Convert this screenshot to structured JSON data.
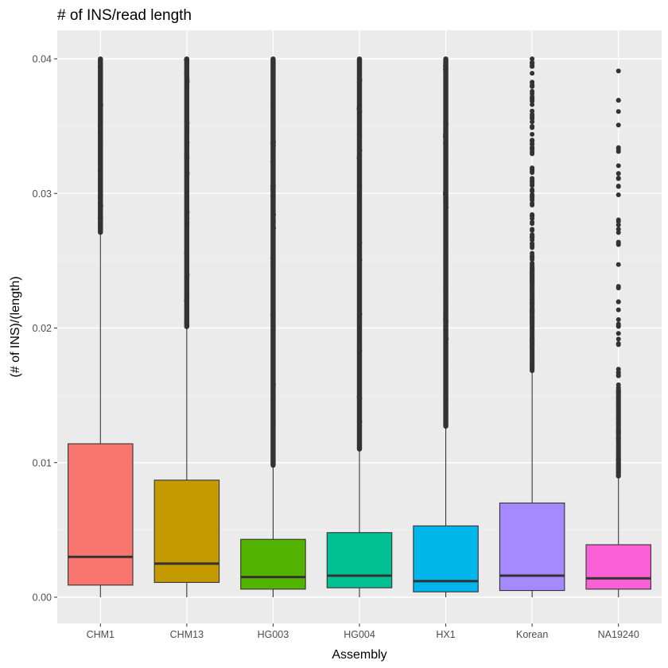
{
  "chart_data": {
    "type": "boxplot",
    "title": "# of INS/read length",
    "xlabel": "Assembly",
    "ylabel": "(# of INS)/(length)",
    "ylim": [
      -0.0015,
      0.0425
    ],
    "yticks": [
      {
        "value": 0.0,
        "label": "0.00"
      },
      {
        "value": 0.01,
        "label": "0.01"
      },
      {
        "value": 0.02,
        "label": "0.02"
      },
      {
        "value": 0.03,
        "label": "0.03"
      },
      {
        "value": 0.04,
        "label": "0.04"
      }
    ],
    "grid": true,
    "legend": "none",
    "categories": [
      "CHM1",
      "CHM13",
      "HG003",
      "HG004",
      "HX1",
      "Korean",
      "NA19240"
    ],
    "boxes": [
      {
        "name": "CHM1",
        "color": "#F8766D",
        "whisker_low": 0.0,
        "q1": 0.0009,
        "median": 0.003,
        "q3": 0.0114,
        "whisker_high": 0.0271,
        "outlier_max": 0.04,
        "outlier_density": "dense"
      },
      {
        "name": "CHM13",
        "color": "#C49A00",
        "whisker_low": 0.0,
        "q1": 0.0011,
        "median": 0.0025,
        "q3": 0.0087,
        "whisker_high": 0.0201,
        "outlier_max": 0.04,
        "outlier_density": "dense"
      },
      {
        "name": "HG003",
        "color": "#53B400",
        "whisker_low": 0.0,
        "q1": 0.0006,
        "median": 0.0015,
        "q3": 0.0043,
        "whisker_high": 0.0098,
        "outlier_max": 0.04,
        "outlier_density": "dense"
      },
      {
        "name": "HG004",
        "color": "#00C094",
        "whisker_low": 0.0,
        "q1": 0.0007,
        "median": 0.0016,
        "q3": 0.0048,
        "whisker_high": 0.011,
        "outlier_max": 0.04,
        "outlier_density": "dense"
      },
      {
        "name": "HX1",
        "color": "#00B6EB",
        "whisker_low": 0.0,
        "q1": 0.0004,
        "median": 0.0012,
        "q3": 0.0053,
        "whisker_high": 0.0127,
        "outlier_max": 0.04,
        "outlier_density": "dense"
      },
      {
        "name": "Korean",
        "color": "#A58AFF",
        "whisker_low": 0.0,
        "q1": 0.0005,
        "median": 0.0016,
        "q3": 0.007,
        "whisker_high": 0.0168,
        "outlier_max": 0.04,
        "outlier_density": "medium"
      },
      {
        "name": "NA19240",
        "color": "#FB61D7",
        "whisker_low": 0.0,
        "q1": 0.0006,
        "median": 0.0014,
        "q3": 0.0039,
        "whisker_high": 0.009,
        "outlier_max": 0.0391,
        "outlier_density": "sparse"
      }
    ]
  }
}
